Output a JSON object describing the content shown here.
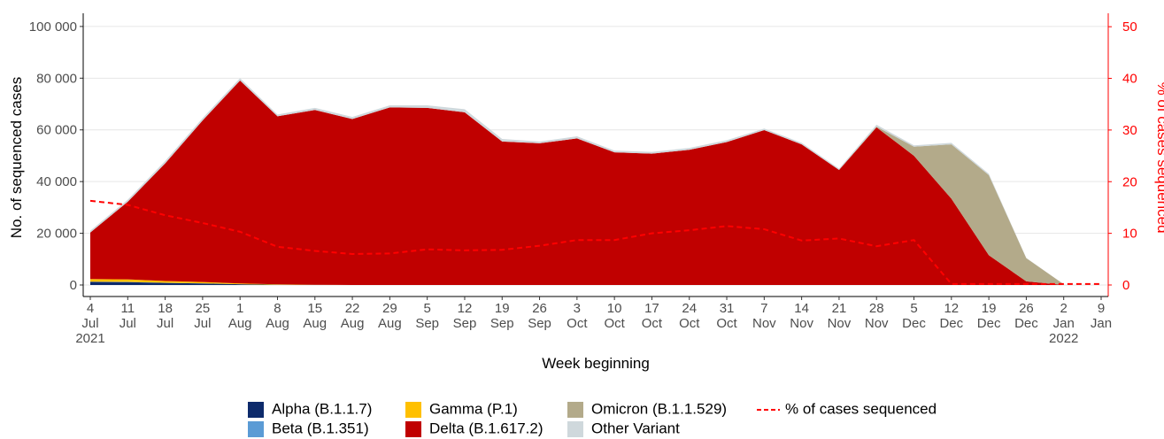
{
  "chart_data": {
    "type": "stacked_area_line",
    "y_label": "No. of sequenced cases",
    "y2_label": "% of cases sequenced",
    "x_label": "Week beginning",
    "categories": [
      "4 Jul 2021",
      "11 Jul",
      "18 Jul",
      "25 Jul",
      "1 Aug",
      "8 Aug",
      "15 Aug",
      "22 Aug",
      "29 Aug",
      "5 Sep",
      "12 Sep",
      "19 Sep",
      "26 Sep",
      "3 Oct",
      "10 Oct",
      "17 Oct",
      "24 Oct",
      "31 Oct",
      "7 Nov",
      "14 Nov",
      "21 Nov",
      "28 Nov",
      "5 Dec",
      "12 Dec",
      "19 Dec",
      "26 Dec",
      "2 Jan 2022",
      "9 Jan"
    ],
    "series": [
      {
        "name": "Alpha (B.1.1.7)",
        "color": "#0d2a6b",
        "values": [
          1200,
          1100,
          800,
          600,
          300,
          100,
          50,
          0,
          0,
          0,
          0,
          0,
          0,
          0,
          0,
          0,
          0,
          0,
          0,
          0,
          0,
          0,
          0,
          0,
          0,
          0,
          0,
          null
        ]
      },
      {
        "name": "Beta (B.1.351)",
        "color": "#5b9bd5",
        "values": [
          100,
          100,
          50,
          50,
          0,
          0,
          0,
          0,
          0,
          0,
          0,
          0,
          0,
          0,
          0,
          0,
          0,
          0,
          0,
          0,
          0,
          0,
          0,
          0,
          0,
          0,
          0,
          null
        ]
      },
      {
        "name": "Gamma (P.1)",
        "color": "#ffc000",
        "values": [
          1000,
          1000,
          700,
          500,
          300,
          150,
          50,
          0,
          0,
          0,
          0,
          0,
          0,
          0,
          0,
          0,
          0,
          0,
          0,
          0,
          0,
          0,
          0,
          0,
          0,
          0,
          0,
          null
        ]
      },
      {
        "name": "Delta (B.1.617.2)",
        "color": "#c00000",
        "values": [
          18000,
          30000,
          45500,
          62500,
          78500,
          65000,
          67600,
          64200,
          68700,
          68500,
          66800,
          55500,
          54800,
          56700,
          51300,
          50800,
          52300,
          55300,
          59900,
          54400,
          44500,
          61000,
          50000,
          33400,
          11500,
          1400,
          0,
          null
        ]
      },
      {
        "name": "Omicron (B.1.1.529)",
        "color": "#b3aa8a",
        "values": [
          0,
          0,
          0,
          0,
          0,
          0,
          0,
          0,
          0,
          0,
          0,
          0,
          0,
          0,
          0,
          0,
          0,
          0,
          0,
          0,
          0,
          300,
          3500,
          21000,
          31000,
          9000,
          300,
          null
        ]
      },
      {
        "name": "Other Variant",
        "color": "#cfd8dc",
        "values": [
          700,
          800,
          900,
          900,
          900,
          700,
          800,
          800,
          800,
          1000,
          1200,
          1000,
          700,
          800,
          700,
          700,
          700,
          700,
          600,
          600,
          500,
          700,
          500,
          600,
          500,
          100,
          0,
          null
        ]
      },
      {
        "name": "% of cases sequenced",
        "color": "#ff0000",
        "axis": "y2",
        "dashed": true,
        "values": [
          16.3,
          15.5,
          13.5,
          12,
          10.3,
          7.4,
          6.6,
          6,
          6.1,
          6.9,
          6.7,
          6.8,
          7.6,
          8.7,
          8.7,
          10,
          10.6,
          11.4,
          10.8,
          8.6,
          9,
          7.5,
          8.7,
          0.2,
          0.2,
          0.2,
          0.2,
          0.2
        ]
      }
    ],
    "ylim": [
      -4450,
      105100
    ],
    "yticks": [
      {
        "value": 0,
        "label": "0"
      },
      {
        "value": 20000,
        "label": "20 000"
      },
      {
        "value": 40000,
        "label": "40 000"
      },
      {
        "value": 60000,
        "label": "60 000"
      },
      {
        "value": 80000,
        "label": "80 000"
      },
      {
        "value": 100000,
        "label": "100 000"
      }
    ],
    "y2lim": [
      -2.23,
      52.6
    ],
    "y2ticks": [
      0,
      10,
      20,
      30,
      40,
      50
    ],
    "grid": true
  }
}
